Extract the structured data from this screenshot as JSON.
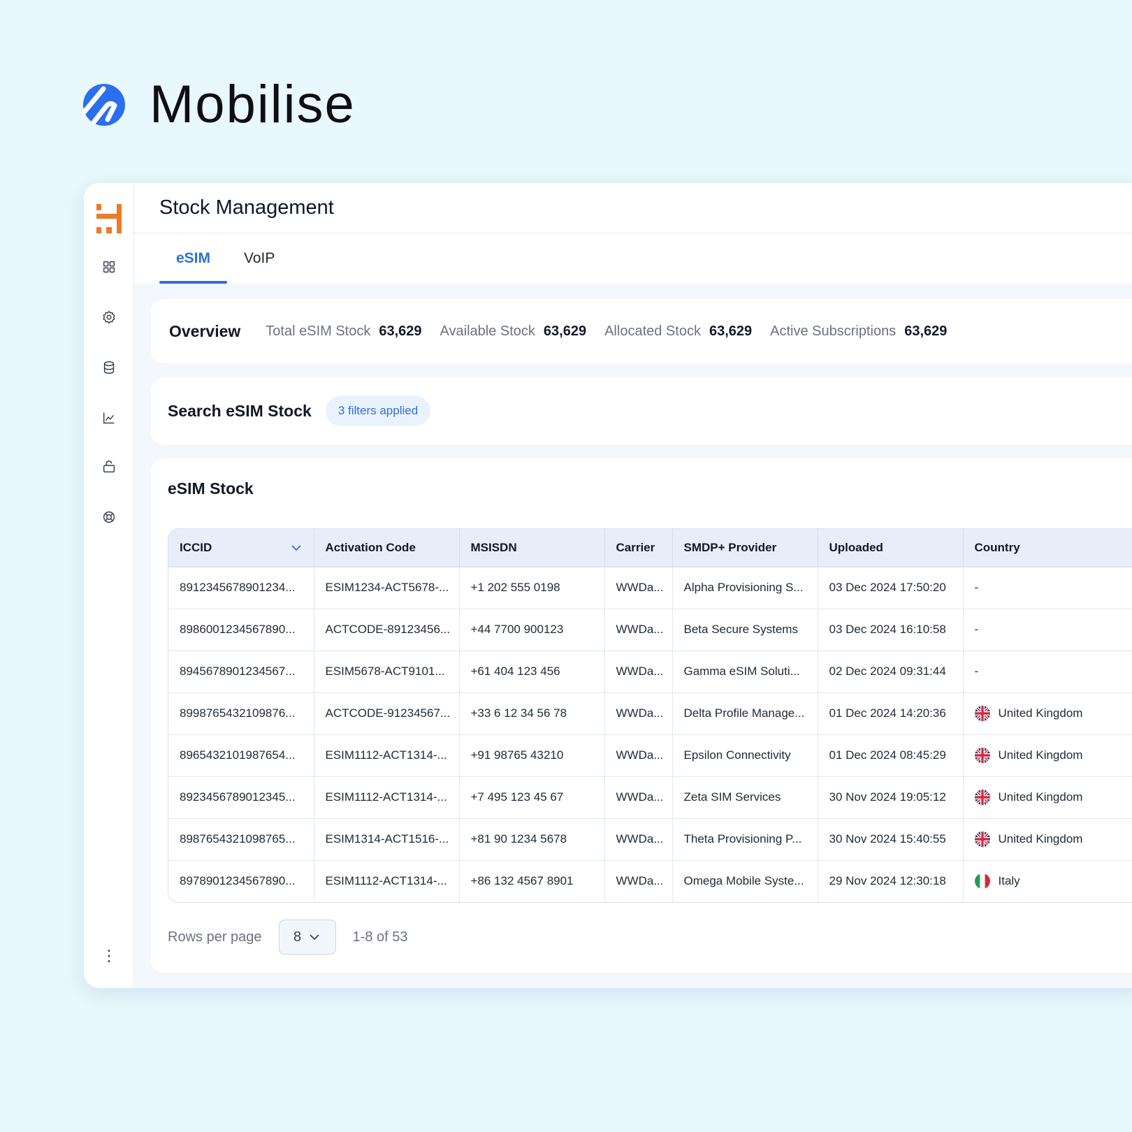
{
  "brand": {
    "name": "Mobilise",
    "logo_icon": "mobilise-logo"
  },
  "sidebar": {
    "logo_icon": "app-logo",
    "items": [
      {
        "name": "dashboard",
        "icon": "grid-icon"
      },
      {
        "name": "settings",
        "icon": "gear-icon"
      },
      {
        "name": "database",
        "icon": "database-icon"
      },
      {
        "name": "analytics",
        "icon": "chart-icon"
      },
      {
        "name": "shop",
        "icon": "bag-icon"
      },
      {
        "name": "support",
        "icon": "lifebuoy-icon"
      }
    ],
    "more_label": "⋮"
  },
  "header": {
    "title": "Stock Management"
  },
  "tabs": [
    {
      "label": "eSIM",
      "active": true
    },
    {
      "label": "VoIP",
      "active": false
    }
  ],
  "overview": {
    "title": "Overview",
    "items": [
      {
        "label": "Total eSIM Stock",
        "value": "63,629"
      },
      {
        "label": "Available Stock",
        "value": "63,629"
      },
      {
        "label": "Allocated Stock",
        "value": "63,629"
      },
      {
        "label": "Active Subscriptions",
        "value": "63,629"
      }
    ]
  },
  "search": {
    "title": "Search eSIM Stock",
    "filter_chip": "3 filters applied"
  },
  "stock": {
    "title": "eSIM Stock",
    "columns": [
      "ICCID",
      "Activation Code",
      "MSISDN",
      "Carrier",
      "SMDP+ Provider",
      "Uploaded",
      "Country"
    ],
    "rows": [
      {
        "iccid": "8912345678901234...",
        "activation": "ESIM1234-ACT5678-...",
        "msisdn": "+1 202 555 0198",
        "carrier": "WWDa...",
        "provider": "Alpha Provisioning S...",
        "uploaded": "03 Dec 2024 17:50:20",
        "country": "-",
        "flag": ""
      },
      {
        "iccid": "8986001234567890...",
        "activation": "ACTCODE-89123456...",
        "msisdn": "+44 7700 900123",
        "carrier": "WWDa...",
        "provider": "Beta Secure Systems",
        "uploaded": "03 Dec 2024 16:10:58",
        "country": "-",
        "flag": ""
      },
      {
        "iccid": "8945678901234567...",
        "activation": "ESIM5678-ACT9101...",
        "msisdn": "+61 404 123 456",
        "carrier": "WWDa...",
        "provider": "Gamma eSIM Soluti...",
        "uploaded": "02 Dec 2024 09:31:44",
        "country": "-",
        "flag": ""
      },
      {
        "iccid": "8998765432109876...",
        "activation": "ACTCODE-91234567...",
        "msisdn": "+33 6 12 34 56 78",
        "carrier": "WWDa...",
        "provider": "Delta Profile Manage...",
        "uploaded": "01 Dec 2024 14:20:36",
        "country": "United Kingdom",
        "flag": "uk"
      },
      {
        "iccid": "8965432101987654...",
        "activation": "ESIM1112-ACT1314-...",
        "msisdn": "+91 98765 43210",
        "carrier": "WWDa...",
        "provider": "Epsilon Connectivity",
        "uploaded": "01 Dec 2024 08:45:29",
        "country": "United Kingdom",
        "flag": "uk"
      },
      {
        "iccid": "8923456789012345...",
        "activation": "ESIM1112-ACT1314-...",
        "msisdn": "+7 495 123 45 67",
        "carrier": "WWDa...",
        "provider": "Zeta SIM Services",
        "uploaded": "30 Nov 2024 19:05:12",
        "country": "United Kingdom",
        "flag": "uk"
      },
      {
        "iccid": "8987654321098765...",
        "activation": "ESIM1314-ACT1516-...",
        "msisdn": "+81 90 1234 5678",
        "carrier": "WWDa...",
        "provider": "Theta Provisioning P...",
        "uploaded": "30 Nov 2024 15:40:55",
        "country": "United Kingdom",
        "flag": "uk"
      },
      {
        "iccid": "8978901234567890...",
        "activation": "ESIM1112-ACT1314-...",
        "msisdn": "+86 132 4567 8901",
        "carrier": "WWDa...",
        "provider": "Omega Mobile Syste...",
        "uploaded": "29 Nov 2024 12:30:18",
        "country": "Italy",
        "flag": "it"
      }
    ]
  },
  "pagination": {
    "rows_per_page_label": "Rows per page",
    "rows_per_page_value": "8",
    "range": "1-8 of 53"
  },
  "colors": {
    "accent": "#2f6fd6",
    "brand_blue": "#2a6ff0",
    "app_logo": "#f07a2a",
    "background": "#e8f8fc"
  }
}
